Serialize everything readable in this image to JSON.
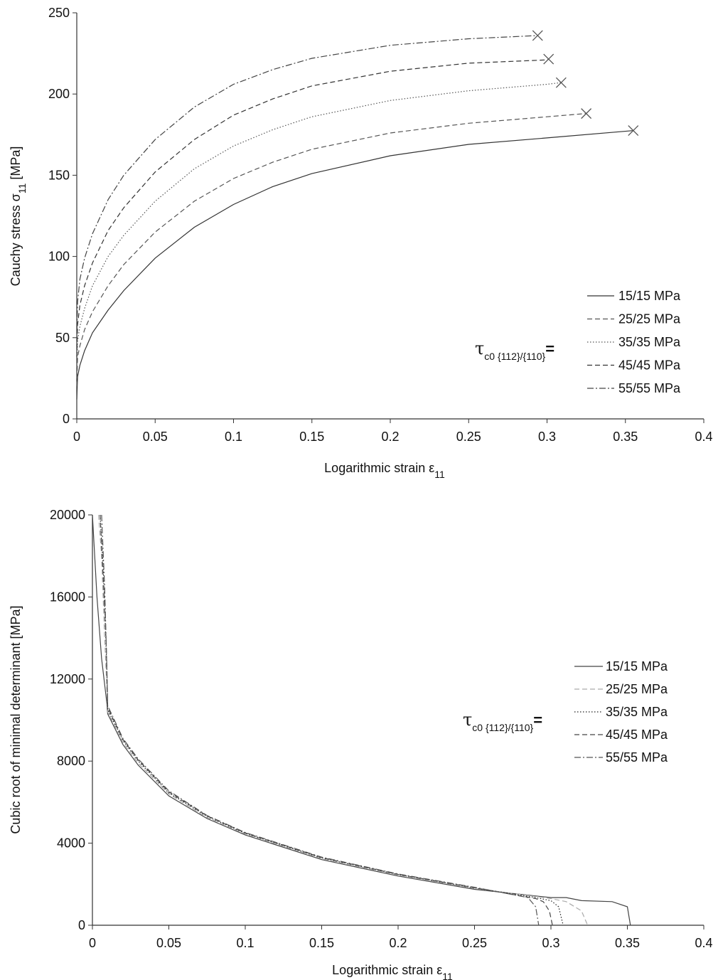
{
  "chart_data": [
    {
      "type": "line",
      "ylabel": "Cauchy stress σ",
      "ylabel_sub": "11",
      "ylabel_unit": " [MPa]",
      "xlabel": "Logarithmic strain ε",
      "xlabel_sub": "11",
      "xlim": [
        0,
        0.4
      ],
      "ylim": [
        0,
        250
      ],
      "xticks": [
        0,
        0.05,
        0.1,
        0.15,
        0.2,
        0.25,
        0.3,
        0.35,
        0.4
      ],
      "xtick_labels": [
        "0",
        "0.05",
        "0.1",
        "0.15",
        "0.2",
        "0.25",
        "0.3",
        "0.35",
        "0.4"
      ],
      "yticks": [
        0,
        50,
        100,
        150,
        200,
        250
      ],
      "ytick_labels": [
        "0",
        "50",
        "100",
        "150",
        "200",
        "250"
      ],
      "grid": false,
      "legend_position": "bottom-right",
      "legend_prefix": "τ",
      "legend_prefix_sub": "c0 {112}/{110}",
      "legend_prefix_eq": "=",
      "series": [
        {
          "name": "15/15 MPa",
          "style": "solid",
          "color": "#333333",
          "x": [
            0,
            0.0005,
            0.002,
            0.005,
            0.01,
            0.02,
            0.03,
            0.05,
            0.075,
            0.1,
            0.125,
            0.15,
            0.2,
            0.25,
            0.3,
            0.355
          ],
          "y": [
            12,
            26,
            33,
            42,
            53,
            67,
            79,
            99,
            118,
            132,
            143,
            151,
            162,
            169,
            173,
            177.5
          ],
          "failure": {
            "x": 0.355,
            "y": 177.5
          }
        },
        {
          "name": "25/25 MPa",
          "style": "dashed",
          "color": "#555555",
          "x": [
            0,
            0.0005,
            0.002,
            0.005,
            0.01,
            0.02,
            0.03,
            0.05,
            0.075,
            0.1,
            0.125,
            0.15,
            0.2,
            0.25,
            0.3,
            0.325
          ],
          "y": [
            20,
            38,
            45,
            55,
            66,
            82,
            95,
            115,
            134,
            148,
            158,
            166,
            176,
            182,
            186,
            188
          ],
          "failure": {
            "x": 0.325,
            "y": 188
          }
        },
        {
          "name": "35/35 MPa",
          "style": "dotted",
          "color": "#555555",
          "x": [
            0,
            0.0005,
            0.002,
            0.005,
            0.01,
            0.02,
            0.03,
            0.05,
            0.075,
            0.1,
            0.125,
            0.15,
            0.2,
            0.25,
            0.3,
            0.309
          ],
          "y": [
            30,
            48,
            57,
            68,
            82,
            100,
            113,
            134,
            154,
            168,
            178,
            186,
            196,
            202,
            206,
            207
          ],
          "failure": {
            "x": 0.309,
            "y": 207
          }
        },
        {
          "name": "45/45 MPa",
          "style": "dashed",
          "color": "#333333",
          "x": [
            0,
            0.0005,
            0.002,
            0.005,
            0.01,
            0.02,
            0.03,
            0.05,
            0.075,
            0.1,
            0.125,
            0.15,
            0.2,
            0.25,
            0.3,
            0.301
          ],
          "y": [
            38,
            58,
            70,
            82,
            96,
            116,
            130,
            152,
            172,
            187,
            197,
            205,
            214,
            219,
            221,
            221.5
          ],
          "failure": {
            "x": 0.301,
            "y": 221.5
          }
        },
        {
          "name": "55/55 MPa",
          "style": "dashdot",
          "color": "#444444",
          "x": [
            0,
            0.0005,
            0.002,
            0.005,
            0.01,
            0.02,
            0.03,
            0.05,
            0.075,
            0.1,
            0.125,
            0.15,
            0.2,
            0.25,
            0.294
          ],
          "y": [
            48,
            72,
            86,
            99,
            114,
            135,
            150,
            172,
            192,
            206,
            215,
            222,
            230,
            234,
            236
          ],
          "failure": {
            "x": 0.294,
            "y": 236
          }
        }
      ]
    },
    {
      "type": "line",
      "ylabel": "Cubic root of minimal determinant [MPa]",
      "xlabel": "Logarithmic strain ε",
      "xlabel_sub": "11",
      "xlim": [
        0,
        0.4
      ],
      "ylim": [
        0,
        20000
      ],
      "xticks": [
        0,
        0.05,
        0.1,
        0.15,
        0.2,
        0.25,
        0.3,
        0.35,
        0.4
      ],
      "xtick_labels": [
        "0",
        "0.05",
        "0.1",
        "0.15",
        "0.2",
        "0.25",
        "0.3",
        "0.35",
        "0.4"
      ],
      "yticks": [
        0,
        4000,
        8000,
        12000,
        16000,
        20000
      ],
      "ytick_labels": [
        "0",
        "4000",
        "8000",
        "12000",
        "16000",
        "20000"
      ],
      "grid": false,
      "legend_position": "right",
      "legend_prefix": "τ",
      "legend_prefix_sub": "c0 {112}/{110}",
      "legend_prefix_eq": "=",
      "series": [
        {
          "name": "15/15 MPa",
          "style": "solid",
          "color": "#444444",
          "x": [
            0,
            0.003,
            0.006,
            0.0095,
            0.01,
            0.02,
            0.03,
            0.05,
            0.075,
            0.1,
            0.15,
            0.2,
            0.25,
            0.3,
            0.31,
            0.32,
            0.34,
            0.35,
            0.352
          ],
          "y": [
            20000,
            16000,
            13000,
            10800,
            10300,
            8800,
            7800,
            6300,
            5200,
            4400,
            3200,
            2400,
            1750,
            1350,
            1350,
            1200,
            1150,
            900,
            0
          ]
        },
        {
          "name": "25/25 MPa",
          "style": "dashed",
          "color": "#aaaaaa",
          "x": [
            0.004,
            0.006,
            0.008,
            0.0095,
            0.01,
            0.02,
            0.03,
            0.05,
            0.075,
            0.1,
            0.15,
            0.2,
            0.25,
            0.3,
            0.31,
            0.32,
            0.324
          ],
          "y": [
            20000,
            18000,
            14000,
            11500,
            10400,
            8900,
            7900,
            6400,
            5250,
            4450,
            3250,
            2450,
            1800,
            1300,
            1150,
            700,
            0
          ]
        },
        {
          "name": "35/35 MPa",
          "style": "dotted",
          "color": "#222222",
          "x": [
            0.005,
            0.007,
            0.009,
            0.0098,
            0.01,
            0.02,
            0.03,
            0.05,
            0.075,
            0.1,
            0.15,
            0.2,
            0.25,
            0.29,
            0.3,
            0.305,
            0.308
          ],
          "y": [
            20000,
            17500,
            13500,
            11200,
            10500,
            9000,
            8000,
            6450,
            5300,
            4480,
            3280,
            2470,
            1820,
            1350,
            1200,
            900,
            0
          ]
        },
        {
          "name": "45/45 MPa",
          "style": "dashed",
          "color": "#444444",
          "x": [
            0.005,
            0.007,
            0.009,
            0.0098,
            0.01,
            0.02,
            0.03,
            0.05,
            0.075,
            0.1,
            0.15,
            0.2,
            0.25,
            0.29,
            0.295,
            0.299,
            0.301
          ],
          "y": [
            20000,
            17000,
            13800,
            11300,
            10600,
            9050,
            8050,
            6500,
            5330,
            4500,
            3300,
            2480,
            1830,
            1300,
            1150,
            700,
            0
          ]
        },
        {
          "name": "55/55 MPa",
          "style": "dashdot",
          "color": "#555555",
          "x": [
            0.006,
            0.008,
            0.0095,
            0.01,
            0.02,
            0.03,
            0.05,
            0.075,
            0.1,
            0.15,
            0.2,
            0.25,
            0.285,
            0.29,
            0.292
          ],
          "y": [
            20000,
            16500,
            12500,
            10700,
            9100,
            8100,
            6550,
            5350,
            4520,
            3320,
            2500,
            1850,
            1350,
            900,
            0
          ]
        }
      ]
    }
  ]
}
